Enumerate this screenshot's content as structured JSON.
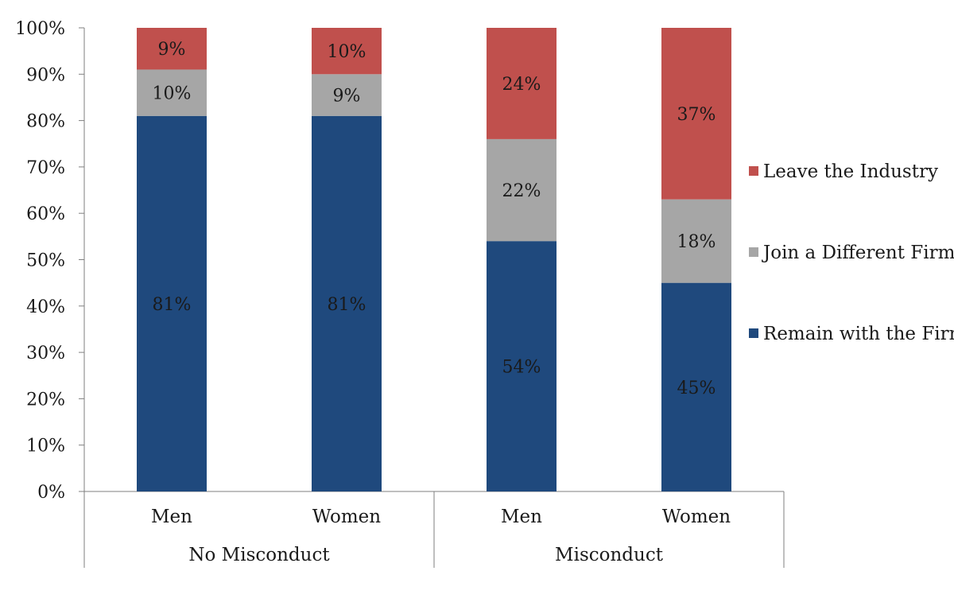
{
  "chart_data": {
    "type": "bar",
    "stacked": true,
    "normalized": true,
    "ylim": [
      0,
      100
    ],
    "ytick_step": 10,
    "ytick_format": "%",
    "grid": false,
    "legend_position": "right",
    "categories": [
      "Men",
      "Women",
      "Men",
      "Women"
    ],
    "groups": [
      {
        "label": "No Misconduct",
        "categories": [
          "Men",
          "Women"
        ]
      },
      {
        "label": "Misconduct",
        "categories": [
          "Men",
          "Women"
        ]
      }
    ],
    "series": [
      {
        "name": "Remain with the Firm",
        "color": "#1f497d",
        "values": [
          81,
          81,
          54,
          45
        ],
        "labels": [
          "81%",
          "81%",
          "54%",
          "45%"
        ]
      },
      {
        "name": "Join a Different Firm",
        "color": "#a6a6a6",
        "values": [
          10,
          9,
          22,
          18
        ],
        "labels": [
          "10%",
          "9%",
          "22%",
          "18%"
        ]
      },
      {
        "name": "Leave the Industry",
        "color": "#c0504d",
        "values": [
          9,
          10,
          24,
          37
        ],
        "labels": [
          "9%",
          "10%",
          "24%",
          "37%"
        ]
      }
    ],
    "legend_order": [
      "Leave the Industry",
      "Join a Different Firm",
      "Remain with the Firm"
    ],
    "title": "",
    "xlabel": "",
    "ylabel": ""
  }
}
